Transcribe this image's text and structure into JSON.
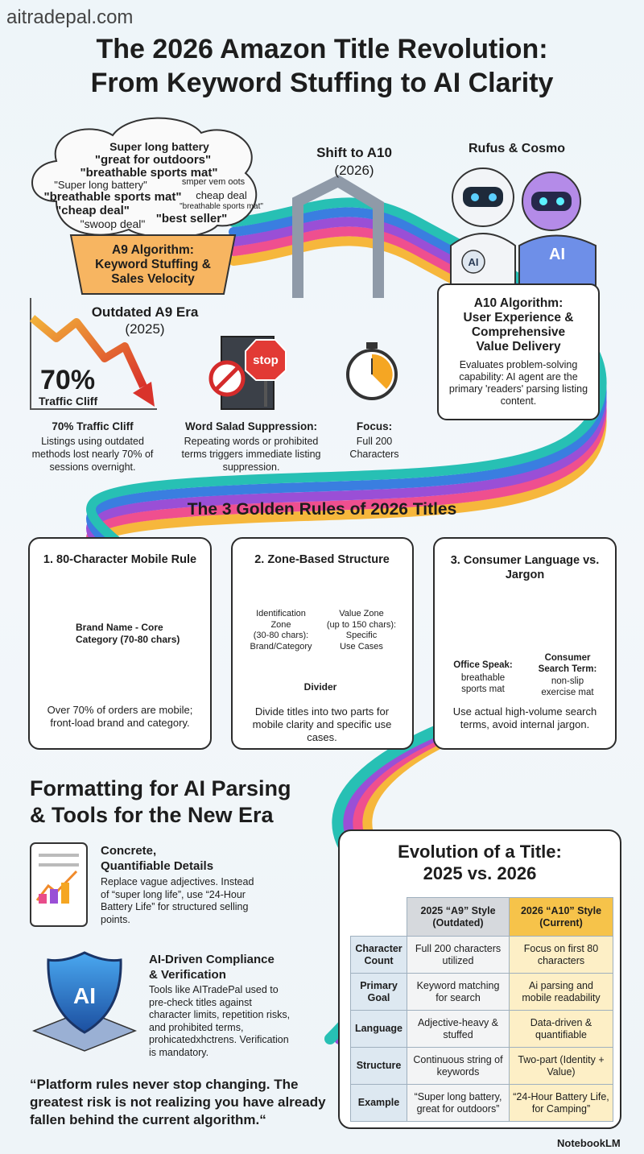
{
  "header": {
    "site": "aitradepal.com",
    "title": [
      "The 2026 Amazon Title Revolution:",
      "From Keyword Stuffing to AI Clarity"
    ]
  },
  "a9": {
    "cloud": [
      "Super long battery",
      "\"great for outdoors\"",
      "\"breathable sports mat\"",
      "\"Super long battery\"",
      "smper vem oots",
      "\"breathable sports mat\"",
      "cheap deal",
      "\"breathable sports mat\"",
      "\"cheap deal\"",
      "\"swoop deal\"",
      "\"best seller\""
    ],
    "box": [
      "A9 Algorithm:",
      "Keyword Stuffing &",
      "Sales Velocity"
    ],
    "era": "Outdated A9 Era",
    "year": "(2025)"
  },
  "shift": {
    "label": "Shift to A10",
    "year": "(2026)"
  },
  "robots": {
    "label": "Rufus & Cosmo",
    "badge_left": "AI",
    "badge_right": "AI"
  },
  "a10": {
    "title": [
      "A10 Algorithm:",
      "User Experience &",
      "Comprehensive",
      "Value Delivery"
    ],
    "body": "Evaluates problem-solving capability: AI agent are the primary 'readers' parsing listing content."
  },
  "stats": [
    {
      "chart_value": "70%",
      "chart_caption": "Traffic Cliff",
      "title": "70% Traffic Cliff",
      "body": "Listings using outdated methods lost nearly 70% of sessions overnight."
    },
    {
      "sign": "stop",
      "title": "Word Salad Suppression:",
      "body": "Repeating words or prohibited terms triggers immediate listing suppression."
    },
    {
      "title": "Focus:",
      "body": "Full 200 Characters"
    }
  ],
  "rules": {
    "heading": "The 3 Golden Rules of 2026 Titles",
    "cards": [
      {
        "title": "1. 80-Character Mobile Rule",
        "label": [
          "Brand Name - Core",
          "Category (70-80 chars)"
        ],
        "caption": "Over 70% of orders are mobile; front-load brand and category."
      },
      {
        "title": "2. Zone-Based Structure",
        "zone_left": [
          "Identification",
          "Zone",
          "(30-80 chars):",
          "Brand/Category"
        ],
        "zone_right": [
          "Value Zone",
          "(up to 150 chars):",
          "Specific",
          "Use Cases"
        ],
        "divider": "Divider",
        "caption": "Divide titles into two parts for mobile clarity and specific use cases."
      },
      {
        "title": "3. Consumer Language vs. Jargon",
        "left_title": "Office Speak:",
        "left_text": "breathable sports mat",
        "right_title": "Consumer Search Term:",
        "right_text": "non-slip exercise mat",
        "caption": "Use actual high-volume search terms, avoid internal jargon."
      }
    ]
  },
  "formatting": {
    "heading": [
      "Formatting for AI Parsing",
      "& Tools for the New Era"
    ],
    "items": [
      {
        "title": [
          "Concrete,",
          "Quantifiable Details"
        ],
        "body": "Replace vague adjectives. Instead of “super long life”, use “24-Hour Battery Life” for structured selling points."
      },
      {
        "badge": "AI",
        "title": [
          "AI-Driven Compliance",
          "& Verification"
        ],
        "body": "Tools like AITradePal used to pre-check titles against character limits, repetition risks, and prohibited terms, prohicatedxhctrens. Verification is mandatory."
      }
    ],
    "quote": "“Platform rules never stop changing. The greatest risk is not realizing you have already fallen behind the current algorithm.“"
  },
  "evolution": {
    "title": [
      "Evolution of a Title:",
      "2025 vs. 2026"
    ],
    "headers": [
      [
        "2025 “A9” Style",
        "(Outdated)"
      ],
      [
        "2026 “A10” Style",
        "(Current)"
      ]
    ],
    "rows": [
      [
        "Character Count",
        "Full 200 characters utilized",
        "Focus on first 80 characters"
      ],
      [
        "Primary Goal",
        "Keyword matching for search",
        "Ai parsing and mobile readability"
      ],
      [
        "Language",
        "Adjective-heavy & stuffed",
        "Data-driven & quantifiable"
      ],
      [
        "Structure",
        "Continuous string of keywords",
        "Two-part (Identity + Value)"
      ],
      [
        "Example",
        "“Super long battery, great for outdoors”",
        "“24-Hour Battery Life, for Camping”"
      ]
    ]
  },
  "footer": {
    "brand": "NotebookLM"
  }
}
